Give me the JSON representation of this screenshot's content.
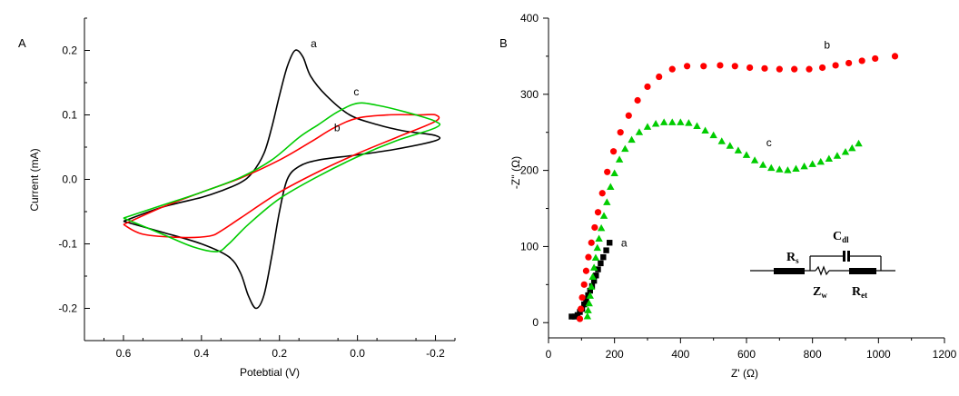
{
  "chart_data": [
    {
      "type": "line",
      "panel_label": "A",
      "xlabel": "Potebtial (V)",
      "ylabel": "Current (mA)",
      "xlim": [
        0.7,
        -0.25
      ],
      "ylim": [
        -0.25,
        0.25
      ],
      "x_ticks": [
        "0.6",
        "0.4",
        "0.2",
        "0.0",
        "-0.2"
      ],
      "x_tick_values": [
        0.6,
        0.4,
        0.2,
        0.0,
        -0.2
      ],
      "y_ticks": [
        "-0.2",
        "-0.1",
        "0.0",
        "0.1",
        "0.2"
      ],
      "y_tick_values": [
        -0.2,
        -0.1,
        0.0,
        0.1,
        0.2
      ],
      "series": [
        {
          "name": "a",
          "color": "#000000",
          "points": [
            [
              0.6,
              -0.065
            ],
            [
              0.5,
              -0.043
            ],
            [
              0.4,
              -0.028
            ],
            [
              0.35,
              -0.018
            ],
            [
              0.3,
              -0.005
            ],
            [
              0.27,
              0.01
            ],
            [
              0.24,
              0.04
            ],
            [
              0.22,
              0.08
            ],
            [
              0.2,
              0.13
            ],
            [
              0.18,
              0.175
            ],
            [
              0.16,
              0.2
            ],
            [
              0.14,
              0.19
            ],
            [
              0.12,
              0.16
            ],
            [
              0.08,
              0.13
            ],
            [
              0.02,
              0.1
            ],
            [
              -0.05,
              0.085
            ],
            [
              -0.12,
              0.075
            ],
            [
              -0.2,
              0.068
            ],
            [
              -0.2,
              0.06
            ],
            [
              -0.1,
              0.047
            ],
            [
              0.0,
              0.038
            ],
            [
              0.1,
              0.03
            ],
            [
              0.15,
              0.02
            ],
            [
              0.18,
              0.0
            ],
            [
              0.2,
              -0.05
            ],
            [
              0.22,
              -0.12
            ],
            [
              0.24,
              -0.18
            ],
            [
              0.26,
              -0.2
            ],
            [
              0.28,
              -0.18
            ],
            [
              0.3,
              -0.145
            ],
            [
              0.33,
              -0.12
            ],
            [
              0.4,
              -0.1
            ],
            [
              0.5,
              -0.082
            ],
            [
              0.6,
              -0.065
            ]
          ]
        },
        {
          "name": "b",
          "color": "#ff0000",
          "points": [
            [
              0.6,
              -0.07
            ],
            [
              0.5,
              -0.043
            ],
            [
              0.4,
              -0.02
            ],
            [
              0.3,
              0.002
            ],
            [
              0.2,
              0.03
            ],
            [
              0.12,
              0.058
            ],
            [
              0.06,
              0.08
            ],
            [
              0.0,
              0.095
            ],
            [
              -0.08,
              0.1
            ],
            [
              -0.16,
              0.1
            ],
            [
              -0.2,
              0.1
            ],
            [
              -0.2,
              0.09
            ],
            [
              -0.1,
              0.065
            ],
            [
              0.0,
              0.04
            ],
            [
              0.1,
              0.012
            ],
            [
              0.2,
              -0.02
            ],
            [
              0.3,
              -0.06
            ],
            [
              0.35,
              -0.08
            ],
            [
              0.38,
              -0.088
            ],
            [
              0.45,
              -0.09
            ],
            [
              0.55,
              -0.085
            ],
            [
              0.6,
              -0.07
            ]
          ]
        },
        {
          "name": "c",
          "color": "#00cc00",
          "points": [
            [
              0.6,
              -0.06
            ],
            [
              0.5,
              -0.04
            ],
            [
              0.4,
              -0.02
            ],
            [
              0.3,
              0.003
            ],
            [
              0.22,
              0.03
            ],
            [
              0.15,
              0.065
            ],
            [
              0.1,
              0.085
            ],
            [
              0.05,
              0.105
            ],
            [
              0.0,
              0.118
            ],
            [
              -0.05,
              0.115
            ],
            [
              -0.12,
              0.105
            ],
            [
              -0.2,
              0.09
            ],
            [
              -0.2,
              0.08
            ],
            [
              -0.1,
              0.06
            ],
            [
              0.0,
              0.035
            ],
            [
              0.1,
              0.005
            ],
            [
              0.2,
              -0.03
            ],
            [
              0.28,
              -0.07
            ],
            [
              0.33,
              -0.1
            ],
            [
              0.36,
              -0.112
            ],
            [
              0.42,
              -0.105
            ],
            [
              0.5,
              -0.085
            ],
            [
              0.6,
              -0.06
            ]
          ]
        }
      ],
      "curve_labels": [
        {
          "text": "a",
          "x": 0.12,
          "y": 0.205
        },
        {
          "text": "c",
          "x": 0.01,
          "y": 0.13
        },
        {
          "text": "b",
          "x": 0.06,
          "y": 0.075
        }
      ]
    },
    {
      "type": "scatter",
      "panel_label": "B",
      "xlabel": "Z' (Ω)",
      "ylabel": "-Z'' (Ω)",
      "xlim": [
        0,
        1200
      ],
      "ylim": [
        -20,
        400
      ],
      "x_ticks": [
        "0",
        "200",
        "400",
        "600",
        "800",
        "1000",
        "1200"
      ],
      "x_tick_values": [
        0,
        200,
        400,
        600,
        800,
        1000,
        1200
      ],
      "y_ticks": [
        "0",
        "100",
        "200",
        "300",
        "400"
      ],
      "y_tick_values": [
        0,
        100,
        200,
        300,
        400
      ],
      "series": [
        {
          "name": "a",
          "color": "#000000",
          "marker": "square",
          "points": [
            [
              70,
              8
            ],
            [
              80,
              8
            ],
            [
              88,
              10
            ],
            [
              95,
              14
            ],
            [
              102,
              18
            ],
            [
              108,
              24
            ],
            [
              114,
              30
            ],
            [
              120,
              36
            ],
            [
              126,
              42
            ],
            [
              132,
              48
            ],
            [
              138,
              55
            ],
            [
              144,
              62
            ],
            [
              150,
              70
            ],
            [
              158,
              78
            ],
            [
              166,
              86
            ],
            [
              175,
              95
            ],
            [
              185,
              105
            ]
          ]
        },
        {
          "name": "b",
          "color": "#ff0000",
          "marker": "circle",
          "points": [
            [
              95,
              5
            ],
            [
              98,
              18
            ],
            [
              102,
              33
            ],
            [
              108,
              50
            ],
            [
              114,
              68
            ],
            [
              121,
              86
            ],
            [
              130,
              105
            ],
            [
              140,
              125
            ],
            [
              150,
              145
            ],
            [
              163,
              170
            ],
            [
              178,
              198
            ],
            [
              197,
              225
            ],
            [
              218,
              250
            ],
            [
              243,
              272
            ],
            [
              270,
              292
            ],
            [
              300,
              310
            ],
            [
              335,
              323
            ],
            [
              375,
              333
            ],
            [
              420,
              337
            ],
            [
              470,
              337
            ],
            [
              520,
              338
            ],
            [
              565,
              337
            ],
            [
              610,
              335
            ],
            [
              655,
              334
            ],
            [
              700,
              333
            ],
            [
              745,
              333
            ],
            [
              790,
              333
            ],
            [
              830,
              335
            ],
            [
              870,
              338
            ],
            [
              910,
              341
            ],
            [
              950,
              344
            ],
            [
              990,
              347
            ],
            [
              1050,
              350
            ]
          ]
        },
        {
          "name": "c",
          "color": "#00cc00",
          "marker": "triangle",
          "points": [
            [
              118,
              8
            ],
            [
              120,
              16
            ],
            [
              123,
              25
            ],
            [
              126,
              35
            ],
            [
              130,
              47
            ],
            [
              134,
              60
            ],
            [
              138,
              72
            ],
            [
              143,
              85
            ],
            [
              148,
              98
            ],
            [
              153,
              110
            ],
            [
              160,
              124
            ],
            [
              168,
              140
            ],
            [
              177,
              158
            ],
            [
              188,
              178
            ],
            [
              200,
              196
            ],
            [
              215,
              214
            ],
            [
              232,
              228
            ],
            [
              252,
              240
            ],
            [
              275,
              250
            ],
            [
              300,
              257
            ],
            [
              325,
              261
            ],
            [
              350,
              263
            ],
            [
              375,
              263
            ],
            [
              400,
              263
            ],
            [
              425,
              262
            ],
            [
              450,
              258
            ],
            [
              475,
              252
            ],
            [
              500,
              246
            ],
            [
              525,
              238
            ],
            [
              550,
              232
            ],
            [
              575,
              226
            ],
            [
              600,
              220
            ],
            [
              625,
              213
            ],
            [
              650,
              207
            ],
            [
              675,
              203
            ],
            [
              700,
              201
            ],
            [
              725,
              200
            ],
            [
              750,
              202
            ],
            [
              775,
              205
            ],
            [
              800,
              208
            ],
            [
              825,
              211
            ],
            [
              850,
              215
            ],
            [
              875,
              219
            ],
            [
              900,
              224
            ],
            [
              920,
              229
            ],
            [
              940,
              235
            ]
          ]
        }
      ],
      "curve_labels": [
        {
          "text": "b",
          "x": 835,
          "y": 360
        },
        {
          "text": "c",
          "x": 660,
          "y": 232
        },
        {
          "text": "a",
          "x": 220,
          "y": 100
        }
      ],
      "circuit": {
        "rs_main": "R",
        "rs_sub": "s",
        "cdl_main": "C",
        "cdl_sub": "dl",
        "zw_main": "Z",
        "zw_sub": "w",
        "ret_main": "R",
        "ret_sub": "et"
      }
    }
  ]
}
